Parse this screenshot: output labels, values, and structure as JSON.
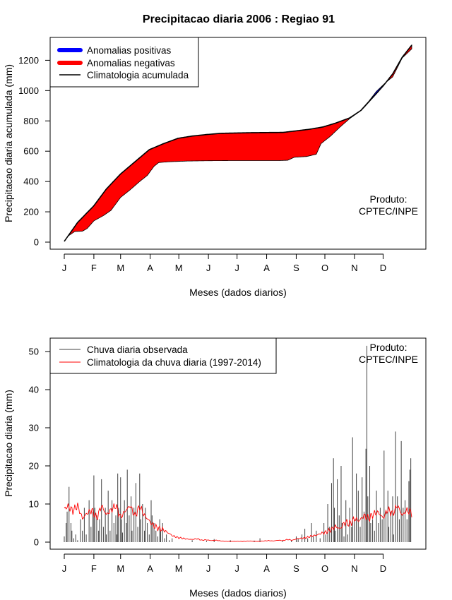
{
  "title": "Precipitacao diaria 2006 : Regiao 91",
  "product_label_line1": "Produto:",
  "product_label_line2": "CPTEC/INPE",
  "month_labels": [
    "J",
    "F",
    "M",
    "A",
    "M",
    "J",
    "J",
    "A",
    "S",
    "O",
    "N",
    "D"
  ],
  "chart_data": [
    {
      "type": "area",
      "name": "accumulated",
      "title": "Precipitacao diaria 2006 : Regiao 91",
      "xlabel": "Meses (dados diarios)",
      "ylabel": "Precipitacao diaria acumulada (mm)",
      "xlim": [
        1,
        365
      ],
      "ylim": [
        0,
        1300
      ],
      "yticks": [
        0,
        200,
        400,
        600,
        800,
        1000,
        1200
      ],
      "legend": {
        "position": "top-left",
        "entries": [
          "Anomalias positivas",
          "Anomalias negativas",
          "Climatologia acumulada"
        ]
      },
      "colors": {
        "positive": "#0000ff",
        "negative": "#ff0000",
        "climatology": "#000000"
      },
      "climatology_points": [
        [
          1,
          5
        ],
        [
          15,
          130
        ],
        [
          32,
          240
        ],
        [
          45,
          350
        ],
        [
          60,
          450
        ],
        [
          75,
          530
        ],
        [
          90,
          610
        ],
        [
          105,
          650
        ],
        [
          120,
          685
        ],
        [
          135,
          700
        ],
        [
          150,
          710
        ],
        [
          165,
          718
        ],
        [
          180,
          720
        ],
        [
          195,
          722
        ],
        [
          210,
          723
        ],
        [
          230,
          724
        ],
        [
          245,
          735
        ],
        [
          258,
          745
        ],
        [
          272,
          760
        ],
        [
          285,
          785
        ],
        [
          300,
          820
        ],
        [
          312,
          870
        ],
        [
          325,
          960
        ],
        [
          335,
          1030
        ],
        [
          345,
          1110
        ],
        [
          355,
          1220
        ],
        [
          365,
          1300
        ]
      ],
      "observed_points": [
        [
          1,
          5
        ],
        [
          5,
          40
        ],
        [
          12,
          70
        ],
        [
          20,
          72
        ],
        [
          25,
          90
        ],
        [
          32,
          140
        ],
        [
          42,
          175
        ],
        [
          50,
          210
        ],
        [
          60,
          295
        ],
        [
          70,
          345
        ],
        [
          80,
          400
        ],
        [
          88,
          440
        ],
        [
          95,
          500
        ],
        [
          100,
          525
        ],
        [
          110,
          530
        ],
        [
          130,
          535
        ],
        [
          150,
          537
        ],
        [
          175,
          538
        ],
        [
          200,
          538
        ],
        [
          225,
          538
        ],
        [
          235,
          540
        ],
        [
          242,
          560
        ],
        [
          255,
          565
        ],
        [
          265,
          580
        ],
        [
          270,
          650
        ],
        [
          280,
          700
        ],
        [
          290,
          760
        ],
        [
          300,
          815
        ],
        [
          310,
          860
        ],
        [
          320,
          930
        ],
        [
          328,
          995
        ],
        [
          338,
          1055
        ],
        [
          345,
          1090
        ],
        [
          355,
          1215
        ],
        [
          365,
          1275
        ]
      ]
    },
    {
      "type": "bar",
      "name": "daily",
      "xlabel": "Meses (dados diarios)",
      "ylabel": "Precipitacao diaria (mm)",
      "xlim": [
        1,
        365
      ],
      "ylim": [
        0,
        52
      ],
      "yticks": [
        0,
        10,
        20,
        30,
        40,
        50
      ],
      "legend": {
        "position": "top-left",
        "entries": [
          "Chuva diaria observada",
          "Climatologia da chuva diaria (1997-2014)"
        ]
      },
      "colors": {
        "observed": "#404040",
        "climatology": "#ff0000"
      },
      "observed_daily": {
        "1": 1.5,
        "3": 5,
        "4": 8,
        "6": 14.5,
        "8": 5,
        "9": 3,
        "11": 1,
        "13": 2,
        "15": 0.5,
        "18": 6,
        "20": 3,
        "22": 9,
        "24": 2,
        "27": 11,
        "29": 4,
        "31": 8,
        "32": 17.5,
        "33": 9,
        "35": 7,
        "37": 3,
        "38": 6,
        "40": 16.5,
        "42": 4,
        "44": 9,
        "45": 2,
        "47": 13.5,
        "49": 3,
        "51": 11,
        "53": 5,
        "55": 7,
        "56": 2,
        "57": 18,
        "58": 9,
        "60": 17,
        "61": 6,
        "62": 2.5,
        "64": 11,
        "66": 5,
        "67": 19,
        "69": 7,
        "71": 12,
        "72": 3,
        "74": 9,
        "76": 15.5,
        "78": 4,
        "80": 18,
        "81": 6,
        "83": 10,
        "85": 3,
        "86": 9,
        "88": 5,
        "90": 2,
        "92": 11,
        "93": 7,
        "95": 5,
        "97": 3,
        "99": 1.5,
        "101": 6,
        "102": 3,
        "104": 5,
        "106": 1,
        "108": 2,
        "111": 0.5,
        "114": 1,
        "135": 0.5,
        "150": 0.3,
        "158": 0.8,
        "175": 0.5,
        "200": 0.4,
        "206": 1,
        "230": 0.3,
        "239": 0.5,
        "244": 1.5,
        "246": 0.8,
        "250": 2,
        "253": 3.5,
        "256": 1,
        "260": 5,
        "262": 1.5,
        "265": 3,
        "269": 1,
        "273": 5,
        "275": 2,
        "277": 10,
        "279": 4,
        "281": 15.5,
        "283": 22,
        "284": 9,
        "285": 3,
        "287": 16.5,
        "289": 7,
        "291": 20,
        "292": 5,
        "294": 1.5,
        "296": 11,
        "298": 2,
        "300": 9,
        "302": 4,
        "303": 27.5,
        "305": 6,
        "307": 18,
        "309": 13.5,
        "311": 4,
        "313": 17,
        "315": 8,
        "317": 24.5,
        "318": 51.5,
        "319": 12,
        "321": 20,
        "322": 5,
        "324": 6,
        "326": 3,
        "328": 13.5,
        "330": 5,
        "332": 9,
        "334": 6,
        "336": 24,
        "338": 8,
        "340": 13.5,
        "341": 4,
        "343": 8,
        "345": 12,
        "346": 2,
        "348": 29,
        "350": 12,
        "352": 6,
        "354": 26.5,
        "356": 9,
        "358": 11,
        "360": 6,
        "362": 16,
        "363": 19,
        "364": 22
      },
      "climatology_daily": [
        [
          1,
          8.8
        ],
        [
          5,
          9.4
        ],
        [
          10,
          8.2
        ],
        [
          15,
          9.6
        ],
        [
          20,
          6.2
        ],
        [
          25,
          7.6
        ],
        [
          30,
          8.4
        ],
        [
          35,
          6.2
        ],
        [
          40,
          9.6
        ],
        [
          45,
          7.2
        ],
        [
          50,
          8.4
        ],
        [
          55,
          9.6
        ],
        [
          60,
          6.5
        ],
        [
          65,
          8.2
        ],
        [
          70,
          9.6
        ],
        [
          75,
          6.8
        ],
        [
          80,
          9.4
        ],
        [
          85,
          7.0
        ],
        [
          90,
          5.6
        ],
        [
          95,
          4.2
        ],
        [
          100,
          3.6
        ],
        [
          105,
          3.2
        ],
        [
          110,
          2.4
        ],
        [
          115,
          1.6
        ],
        [
          120,
          1.2
        ],
        [
          125,
          1.0
        ],
        [
          130,
          0.8
        ],
        [
          135,
          0.7
        ],
        [
          140,
          0.9
        ],
        [
          145,
          0.5
        ],
        [
          150,
          0.6
        ],
        [
          155,
          0.4
        ],
        [
          160,
          0.5
        ],
        [
          165,
          0.3
        ],
        [
          170,
          0.2
        ],
        [
          175,
          0.2
        ],
        [
          180,
          0.2
        ],
        [
          185,
          0.2
        ],
        [
          190,
          0.2
        ],
        [
          195,
          0.3
        ],
        [
          200,
          0.2
        ],
        [
          205,
          0.2
        ],
        [
          210,
          0.3
        ],
        [
          215,
          0.4
        ],
        [
          220,
          0.3
        ],
        [
          225,
          0.5
        ],
        [
          230,
          0.4
        ],
        [
          235,
          0.7
        ],
        [
          240,
          0.5
        ],
        [
          245,
          0.9
        ],
        [
          250,
          1.0
        ],
        [
          255,
          1.2
        ],
        [
          260,
          1.6
        ],
        [
          265,
          1.8
        ],
        [
          270,
          2.3
        ],
        [
          275,
          2.6
        ],
        [
          280,
          3.2
        ],
        [
          285,
          4.1
        ],
        [
          290,
          3.5
        ],
        [
          295,
          5.2
        ],
        [
          300,
          4.8
        ],
        [
          305,
          6.1
        ],
        [
          310,
          5.6
        ],
        [
          315,
          7.0
        ],
        [
          320,
          6.2
        ],
        [
          325,
          7.4
        ],
        [
          330,
          7.8
        ],
        [
          335,
          6.3
        ],
        [
          340,
          8.6
        ],
        [
          345,
          7.4
        ],
        [
          350,
          9.6
        ],
        [
          355,
          7.0
        ],
        [
          360,
          8.4
        ],
        [
          365,
          7.6
        ]
      ]
    }
  ]
}
